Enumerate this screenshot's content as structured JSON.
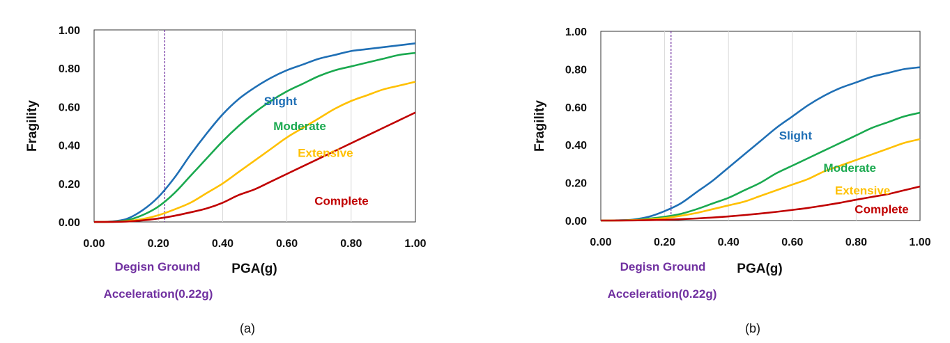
{
  "chart_data": [
    {
      "type": "line",
      "caption": "(a)",
      "xlabel": "PGA(g)",
      "ylabel": "Fragility",
      "xlim": [
        0,
        1
      ],
      "ylim": [
        0,
        1
      ],
      "xticks": [
        "0.00",
        "0.20",
        "0.40",
        "0.60",
        "0.80",
        "1.00"
      ],
      "yticks": [
        "0.00",
        "0.20",
        "0.40",
        "0.60",
        "0.80",
        "1.00"
      ],
      "grid": "vertical",
      "annotation": {
        "x": 0.22,
        "lines": [
          "Degisn Ground",
          "Acceleration(0.22g)"
        ]
      },
      "x": [
        0,
        0.05,
        0.1,
        0.15,
        0.2,
        0.25,
        0.3,
        0.35,
        0.4,
        0.45,
        0.5,
        0.55,
        0.6,
        0.65,
        0.7,
        0.75,
        0.8,
        0.85,
        0.9,
        0.95,
        1.0
      ],
      "series": [
        {
          "name": "Slight",
          "color": "#1F6FB5",
          "values": [
            0,
            0.002,
            0.015,
            0.06,
            0.13,
            0.23,
            0.35,
            0.46,
            0.56,
            0.64,
            0.7,
            0.75,
            0.79,
            0.82,
            0.85,
            0.87,
            0.89,
            0.9,
            0.91,
            0.92,
            0.93
          ]
        },
        {
          "name": "Moderate",
          "color": "#1AA94F",
          "values": [
            0,
            0.001,
            0.008,
            0.035,
            0.08,
            0.15,
            0.24,
            0.33,
            0.42,
            0.5,
            0.57,
            0.63,
            0.68,
            0.72,
            0.76,
            0.79,
            0.81,
            0.83,
            0.85,
            0.87,
            0.88
          ]
        },
        {
          "name": "Extensive",
          "color": "#FFC000",
          "values": [
            0,
            0.0005,
            0.004,
            0.015,
            0.035,
            0.065,
            0.1,
            0.15,
            0.2,
            0.26,
            0.32,
            0.38,
            0.44,
            0.49,
            0.54,
            0.59,
            0.63,
            0.66,
            0.69,
            0.71,
            0.73
          ]
        },
        {
          "name": "Complete",
          "color": "#C00000",
          "values": [
            0,
            0.0002,
            0.002,
            0.008,
            0.018,
            0.032,
            0.05,
            0.07,
            0.1,
            0.14,
            0.17,
            0.21,
            0.25,
            0.29,
            0.33,
            0.37,
            0.41,
            0.45,
            0.49,
            0.53,
            0.57
          ]
        }
      ],
      "label_positions": {
        "Slight": [
          0.58,
          0.63
        ],
        "Moderate": [
          0.64,
          0.5
        ],
        "Extensive": [
          0.72,
          0.36
        ],
        "Complete": [
          0.77,
          0.11
        ]
      }
    },
    {
      "type": "line",
      "caption": "(b)",
      "xlabel": "PGA(g)",
      "ylabel": "Fragility",
      "xlim": [
        0,
        1
      ],
      "ylim": [
        0,
        1
      ],
      "xticks": [
        "0.00",
        "0.20",
        "0.40",
        "0.60",
        "0.80",
        "1.00"
      ],
      "yticks": [
        "0.00",
        "0.20",
        "0.40",
        "0.60",
        "0.80",
        "1.00"
      ],
      "grid": "vertical",
      "annotation": {
        "x": 0.22,
        "lines": [
          "Degisn Ground",
          "Acceleration(0.22g)"
        ]
      },
      "x": [
        0,
        0.05,
        0.1,
        0.15,
        0.2,
        0.25,
        0.3,
        0.35,
        0.4,
        0.45,
        0.5,
        0.55,
        0.6,
        0.65,
        0.7,
        0.75,
        0.8,
        0.85,
        0.9,
        0.95,
        1.0
      ],
      "series": [
        {
          "name": "Slight",
          "color": "#1F6FB5",
          "values": [
            0,
            0.001,
            0.005,
            0.02,
            0.05,
            0.09,
            0.15,
            0.21,
            0.28,
            0.35,
            0.42,
            0.49,
            0.55,
            0.61,
            0.66,
            0.7,
            0.73,
            0.76,
            0.78,
            0.8,
            0.81
          ]
        },
        {
          "name": "Moderate",
          "color": "#1AA94F",
          "values": [
            0,
            0.0005,
            0.003,
            0.01,
            0.02,
            0.035,
            0.06,
            0.09,
            0.12,
            0.16,
            0.2,
            0.25,
            0.29,
            0.33,
            0.37,
            0.41,
            0.45,
            0.49,
            0.52,
            0.55,
            0.57
          ]
        },
        {
          "name": "Extensive",
          "color": "#FFC000",
          "values": [
            0,
            0.0003,
            0.002,
            0.006,
            0.013,
            0.025,
            0.04,
            0.06,
            0.08,
            0.1,
            0.13,
            0.16,
            0.19,
            0.22,
            0.26,
            0.29,
            0.32,
            0.35,
            0.38,
            0.41,
            0.43
          ]
        },
        {
          "name": "Complete",
          "color": "#C00000",
          "values": [
            0,
            0.0001,
            0.0005,
            0.002,
            0.004,
            0.007,
            0.011,
            0.016,
            0.022,
            0.029,
            0.037,
            0.046,
            0.056,
            0.067,
            0.08,
            0.094,
            0.11,
            0.125,
            0.14,
            0.16,
            0.18
          ]
        }
      ],
      "label_positions": {
        "Slight": [
          0.61,
          0.45
        ],
        "Moderate": [
          0.78,
          0.28
        ],
        "Extensive": [
          0.82,
          0.16
        ],
        "Complete": [
          0.88,
          0.06
        ]
      }
    }
  ]
}
